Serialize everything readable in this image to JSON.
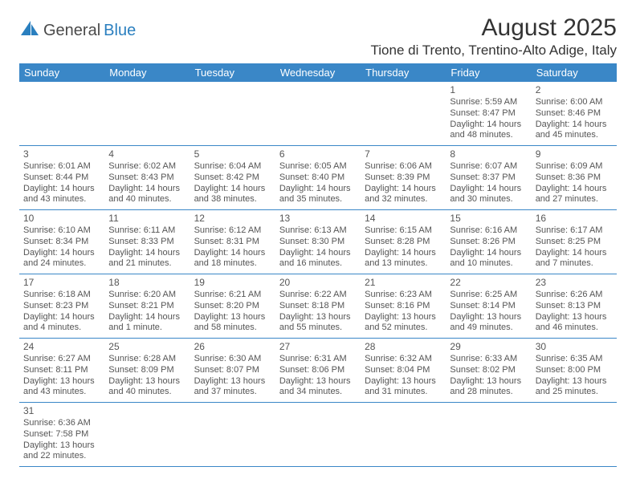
{
  "logo": {
    "part1": "General",
    "part2": "Blue"
  },
  "title": "August 2025",
  "location": "Tione di Trento, Trentino-Alto Adige, Italy",
  "colors": {
    "header_bg": "#3a87c7",
    "header_text": "#ffffff",
    "border": "#3a87c7",
    "body_text": "#555555",
    "title_text": "#333333",
    "logo_gray": "#4a4a4a",
    "logo_blue": "#2a7fbf",
    "background": "#ffffff"
  },
  "day_headers": [
    "Sunday",
    "Monday",
    "Tuesday",
    "Wednesday",
    "Thursday",
    "Friday",
    "Saturday"
  ],
  "weeks": [
    [
      null,
      null,
      null,
      null,
      null,
      {
        "n": "1",
        "sunrise": "Sunrise: 5:59 AM",
        "sunset": "Sunset: 8:47 PM",
        "day": "Daylight: 14 hours and 48 minutes."
      },
      {
        "n": "2",
        "sunrise": "Sunrise: 6:00 AM",
        "sunset": "Sunset: 8:46 PM",
        "day": "Daylight: 14 hours and 45 minutes."
      }
    ],
    [
      {
        "n": "3",
        "sunrise": "Sunrise: 6:01 AM",
        "sunset": "Sunset: 8:44 PM",
        "day": "Daylight: 14 hours and 43 minutes."
      },
      {
        "n": "4",
        "sunrise": "Sunrise: 6:02 AM",
        "sunset": "Sunset: 8:43 PM",
        "day": "Daylight: 14 hours and 40 minutes."
      },
      {
        "n": "5",
        "sunrise": "Sunrise: 6:04 AM",
        "sunset": "Sunset: 8:42 PM",
        "day": "Daylight: 14 hours and 38 minutes."
      },
      {
        "n": "6",
        "sunrise": "Sunrise: 6:05 AM",
        "sunset": "Sunset: 8:40 PM",
        "day": "Daylight: 14 hours and 35 minutes."
      },
      {
        "n": "7",
        "sunrise": "Sunrise: 6:06 AM",
        "sunset": "Sunset: 8:39 PM",
        "day": "Daylight: 14 hours and 32 minutes."
      },
      {
        "n": "8",
        "sunrise": "Sunrise: 6:07 AM",
        "sunset": "Sunset: 8:37 PM",
        "day": "Daylight: 14 hours and 30 minutes."
      },
      {
        "n": "9",
        "sunrise": "Sunrise: 6:09 AM",
        "sunset": "Sunset: 8:36 PM",
        "day": "Daylight: 14 hours and 27 minutes."
      }
    ],
    [
      {
        "n": "10",
        "sunrise": "Sunrise: 6:10 AM",
        "sunset": "Sunset: 8:34 PM",
        "day": "Daylight: 14 hours and 24 minutes."
      },
      {
        "n": "11",
        "sunrise": "Sunrise: 6:11 AM",
        "sunset": "Sunset: 8:33 PM",
        "day": "Daylight: 14 hours and 21 minutes."
      },
      {
        "n": "12",
        "sunrise": "Sunrise: 6:12 AM",
        "sunset": "Sunset: 8:31 PM",
        "day": "Daylight: 14 hours and 18 minutes."
      },
      {
        "n": "13",
        "sunrise": "Sunrise: 6:13 AM",
        "sunset": "Sunset: 8:30 PM",
        "day": "Daylight: 14 hours and 16 minutes."
      },
      {
        "n": "14",
        "sunrise": "Sunrise: 6:15 AM",
        "sunset": "Sunset: 8:28 PM",
        "day": "Daylight: 14 hours and 13 minutes."
      },
      {
        "n": "15",
        "sunrise": "Sunrise: 6:16 AM",
        "sunset": "Sunset: 8:26 PM",
        "day": "Daylight: 14 hours and 10 minutes."
      },
      {
        "n": "16",
        "sunrise": "Sunrise: 6:17 AM",
        "sunset": "Sunset: 8:25 PM",
        "day": "Daylight: 14 hours and 7 minutes."
      }
    ],
    [
      {
        "n": "17",
        "sunrise": "Sunrise: 6:18 AM",
        "sunset": "Sunset: 8:23 PM",
        "day": "Daylight: 14 hours and 4 minutes."
      },
      {
        "n": "18",
        "sunrise": "Sunrise: 6:20 AM",
        "sunset": "Sunset: 8:21 PM",
        "day": "Daylight: 14 hours and 1 minute."
      },
      {
        "n": "19",
        "sunrise": "Sunrise: 6:21 AM",
        "sunset": "Sunset: 8:20 PM",
        "day": "Daylight: 13 hours and 58 minutes."
      },
      {
        "n": "20",
        "sunrise": "Sunrise: 6:22 AM",
        "sunset": "Sunset: 8:18 PM",
        "day": "Daylight: 13 hours and 55 minutes."
      },
      {
        "n": "21",
        "sunrise": "Sunrise: 6:23 AM",
        "sunset": "Sunset: 8:16 PM",
        "day": "Daylight: 13 hours and 52 minutes."
      },
      {
        "n": "22",
        "sunrise": "Sunrise: 6:25 AM",
        "sunset": "Sunset: 8:14 PM",
        "day": "Daylight: 13 hours and 49 minutes."
      },
      {
        "n": "23",
        "sunrise": "Sunrise: 6:26 AM",
        "sunset": "Sunset: 8:13 PM",
        "day": "Daylight: 13 hours and 46 minutes."
      }
    ],
    [
      {
        "n": "24",
        "sunrise": "Sunrise: 6:27 AM",
        "sunset": "Sunset: 8:11 PM",
        "day": "Daylight: 13 hours and 43 minutes."
      },
      {
        "n": "25",
        "sunrise": "Sunrise: 6:28 AM",
        "sunset": "Sunset: 8:09 PM",
        "day": "Daylight: 13 hours and 40 minutes."
      },
      {
        "n": "26",
        "sunrise": "Sunrise: 6:30 AM",
        "sunset": "Sunset: 8:07 PM",
        "day": "Daylight: 13 hours and 37 minutes."
      },
      {
        "n": "27",
        "sunrise": "Sunrise: 6:31 AM",
        "sunset": "Sunset: 8:06 PM",
        "day": "Daylight: 13 hours and 34 minutes."
      },
      {
        "n": "28",
        "sunrise": "Sunrise: 6:32 AM",
        "sunset": "Sunset: 8:04 PM",
        "day": "Daylight: 13 hours and 31 minutes."
      },
      {
        "n": "29",
        "sunrise": "Sunrise: 6:33 AM",
        "sunset": "Sunset: 8:02 PM",
        "day": "Daylight: 13 hours and 28 minutes."
      },
      {
        "n": "30",
        "sunrise": "Sunrise: 6:35 AM",
        "sunset": "Sunset: 8:00 PM",
        "day": "Daylight: 13 hours and 25 minutes."
      }
    ],
    [
      {
        "n": "31",
        "sunrise": "Sunrise: 6:36 AM",
        "sunset": "Sunset: 7:58 PM",
        "day": "Daylight: 13 hours and 22 minutes."
      },
      null,
      null,
      null,
      null,
      null,
      null
    ]
  ]
}
